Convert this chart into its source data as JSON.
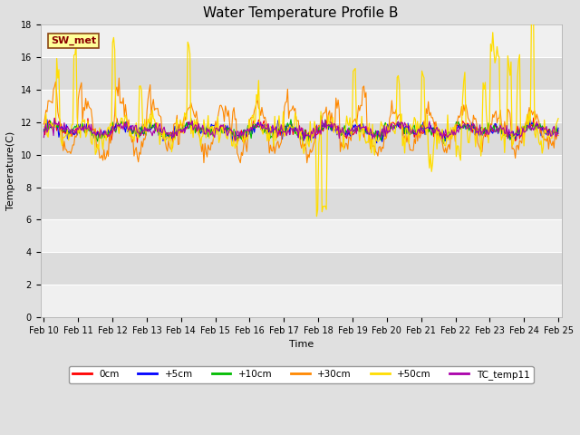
{
  "title": "Water Temperature Profile B",
  "xlabel": "Time",
  "ylabel": "Temperature(C)",
  "ylim": [
    0,
    18
  ],
  "yticks": [
    0,
    2,
    4,
    6,
    8,
    10,
    12,
    14,
    16,
    18
  ],
  "annotation_text": "SW_met",
  "annotation_color": "#8B0000",
  "annotation_bg": "#FFFF99",
  "annotation_border": "#8B4513",
  "x_labels": [
    "Feb 10",
    "Feb 11",
    "Feb 12",
    "Feb 13",
    "Feb 14",
    "Feb 15",
    "Feb 16",
    "Feb 17",
    "Feb 18",
    "Feb 19",
    "Feb 20",
    "Feb 21",
    "Feb 22",
    "Feb 23",
    "Feb 24",
    "Feb 25"
  ],
  "series": {
    "0cm": {
      "color": "#FF0000",
      "linewidth": 0.8
    },
    "+5cm": {
      "color": "#0000FF",
      "linewidth": 0.8
    },
    "+10cm": {
      "color": "#00BB00",
      "linewidth": 0.8
    },
    "+30cm": {
      "color": "#FF8800",
      "linewidth": 0.8
    },
    "+50cm": {
      "color": "#FFDD00",
      "linewidth": 0.9
    },
    "TC_temp11": {
      "color": "#AA00AA",
      "linewidth": 0.8
    }
  },
  "legend_entries": [
    "0cm",
    "+5cm",
    "+10cm",
    "+30cm",
    "+50cm",
    "TC_temp11"
  ],
  "legend_colors": [
    "#FF0000",
    "#0000FF",
    "#00BB00",
    "#FF8800",
    "#FFDD00",
    "#AA00AA"
  ],
  "bg_color": "#E0E0E0",
  "plot_bg_odd": "#DCDCDC",
  "plot_bg_even": "#F0F0F0",
  "grid_color": "#FFFFFF",
  "title_fontsize": 11,
  "axis_fontsize": 8,
  "tick_fontsize": 7
}
